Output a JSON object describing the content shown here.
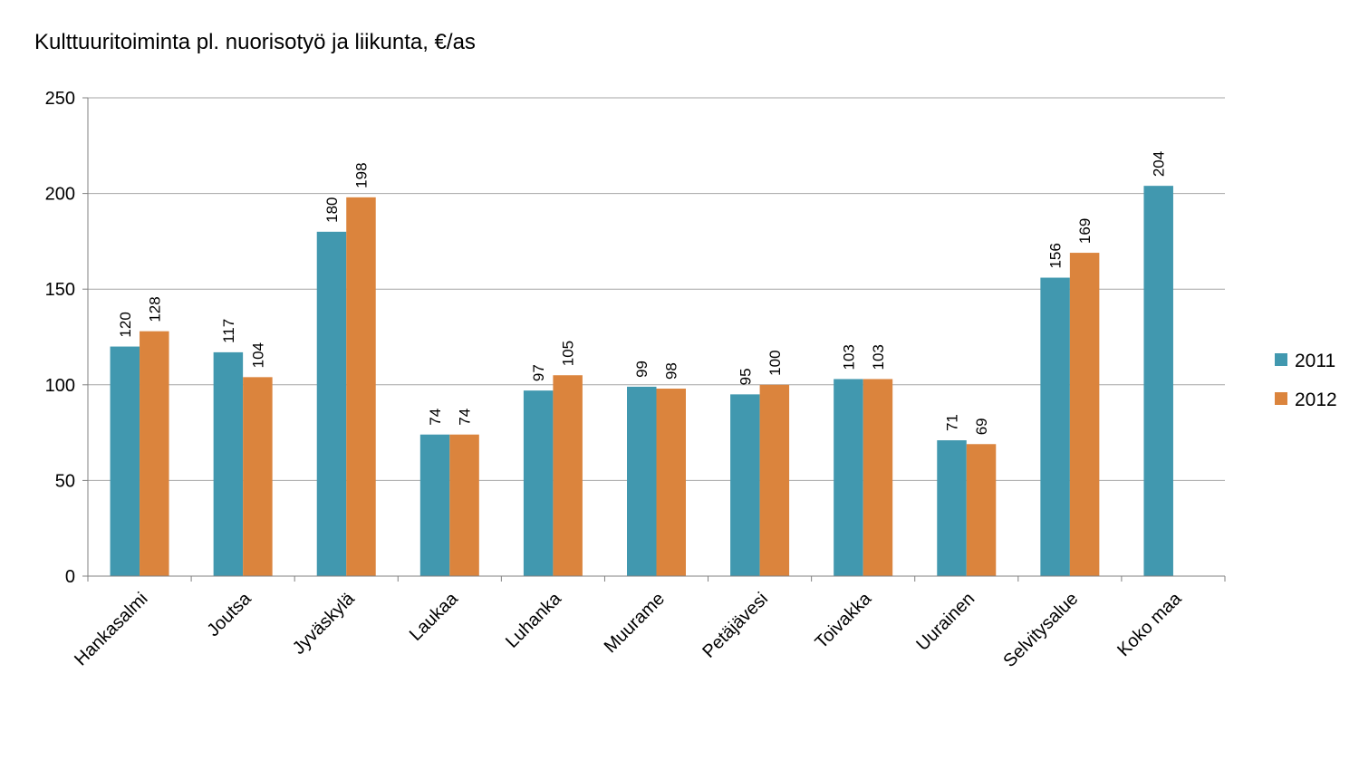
{
  "chart_data": {
    "type": "bar",
    "title": "Kulttuuritoiminta pl. nuorisotyö ja liikunta, €/as",
    "xlabel": "",
    "ylabel": "",
    "ylim": [
      0,
      250
    ],
    "yticks": [
      0,
      50,
      100,
      150,
      200,
      250
    ],
    "grid": true,
    "legend_position": "right",
    "categories": [
      "Hankasalmi",
      "Joutsa",
      "Jyväskylä",
      "Laukaa",
      "Luhanka",
      "Muurame",
      "Petäjävesi",
      "Toivakka",
      "Uurainen",
      "Selvitysalue",
      "Koko maa"
    ],
    "series": [
      {
        "name": "2011",
        "color": "#4198AF",
        "values": [
          120,
          117,
          180,
          74,
          97,
          99,
          95,
          103,
          71,
          156,
          204
        ]
      },
      {
        "name": "2012",
        "color": "#DB843D",
        "values": [
          128,
          104,
          198,
          74,
          105,
          98,
          100,
          103,
          69,
          169,
          null
        ]
      }
    ]
  }
}
